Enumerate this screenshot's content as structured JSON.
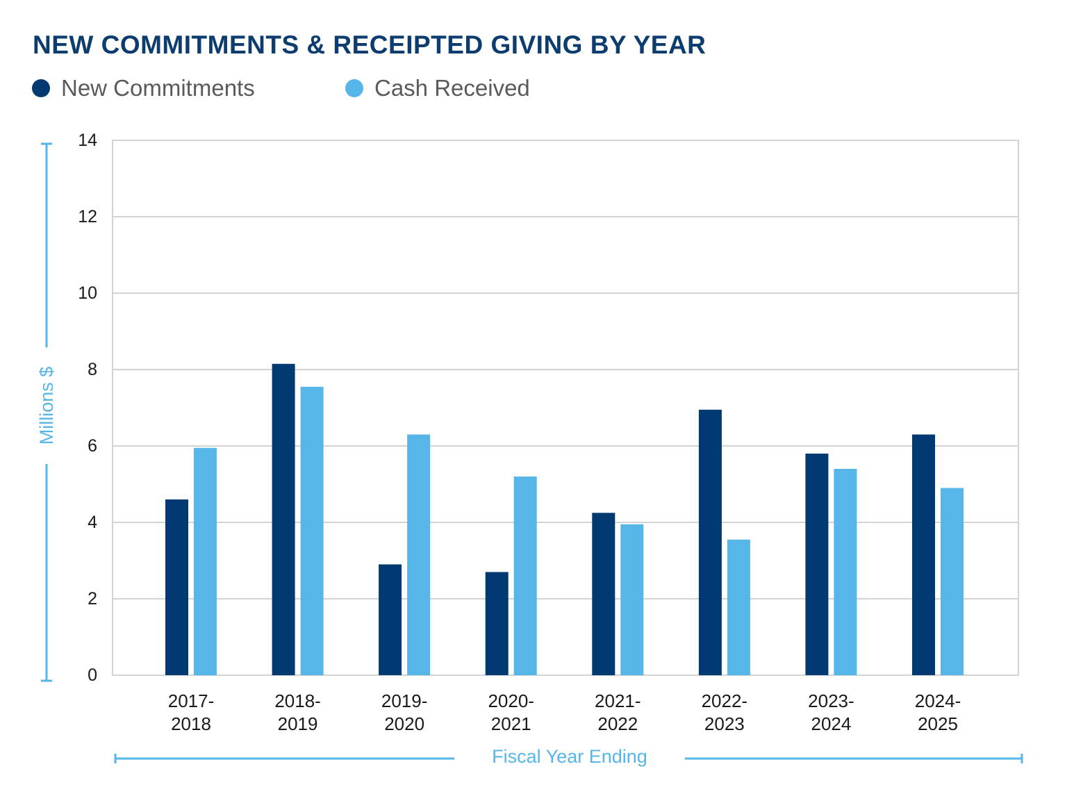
{
  "colors": {
    "title": "#0d3d6e",
    "new_commitments": "#003a70",
    "cash_received": "#56b6e7",
    "grid": "#d3d3d3",
    "axis_label": "#56b6e7"
  },
  "legend": {
    "items": [
      {
        "label": "New Commitments"
      },
      {
        "label": "Cash Received"
      }
    ]
  },
  "chart_data": {
    "type": "bar",
    "title": "NEW COMMITMENTS & RECEIPTED GIVING BY YEAR",
    "xlabel": "Fiscal Year Ending",
    "ylabel": "Millions $",
    "ylim": [
      0,
      14
    ],
    "yticks": [
      "0",
      "2",
      "4",
      "6",
      "8",
      "10",
      "12",
      "14"
    ],
    "grid": true,
    "legend_position": "top-left",
    "categories": [
      [
        "2017-",
        "2018"
      ],
      [
        "2018-",
        "2019"
      ],
      [
        "2019-",
        "2020"
      ],
      [
        "2020-",
        "2021"
      ],
      [
        "2021-",
        "2022"
      ],
      [
        "2022-",
        "2023"
      ],
      [
        "2023-",
        "2024"
      ],
      [
        "2024-",
        "2025"
      ]
    ],
    "series": [
      {
        "name": "New Commitments",
        "values": [
          4.6,
          8.15,
          2.9,
          2.7,
          4.25,
          6.95,
          5.8,
          6.3
        ]
      },
      {
        "name": "Cash Received",
        "values": [
          5.95,
          7.55,
          6.3,
          5.2,
          3.95,
          3.55,
          5.4,
          4.9
        ]
      }
    ]
  }
}
